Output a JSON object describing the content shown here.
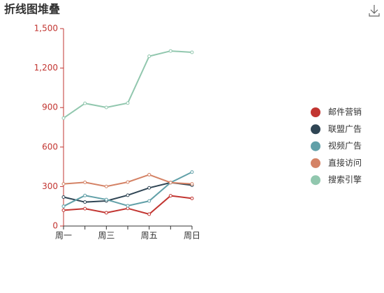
{
  "chart_data": {
    "type": "line",
    "title": "折线图堆叠",
    "categories": [
      "周一",
      null,
      "周三",
      null,
      "周五",
      null,
      "周日"
    ],
    "series": [
      {
        "name": "邮件营销",
        "color": "#c23531",
        "values": [
          120,
          132,
          101,
          134,
          90,
          230,
          210
        ]
      },
      {
        "name": "联盟广告",
        "color": "#2f4554",
        "values": [
          220,
          182,
          191,
          234,
          290,
          330,
          310
        ]
      },
      {
        "name": "视频广告",
        "color": "#61a0a8",
        "values": [
          150,
          232,
          201,
          154,
          190,
          330,
          410
        ]
      },
      {
        "name": "直接访问",
        "color": "#d48265",
        "values": [
          320,
          332,
          301,
          334,
          390,
          330,
          320
        ]
      },
      {
        "name": "搜索引擎",
        "color": "#91c7ae",
        "values": [
          820,
          932,
          901,
          934,
          1290,
          1330,
          1320
        ]
      }
    ],
    "ylim": [
      0,
      1500
    ],
    "yticks": [
      0,
      300,
      600,
      900,
      {
        "value": 1200,
        "label": "1,200"
      },
      {
        "value": 1500,
        "label": "1,500"
      }
    ],
    "legend": "right"
  }
}
